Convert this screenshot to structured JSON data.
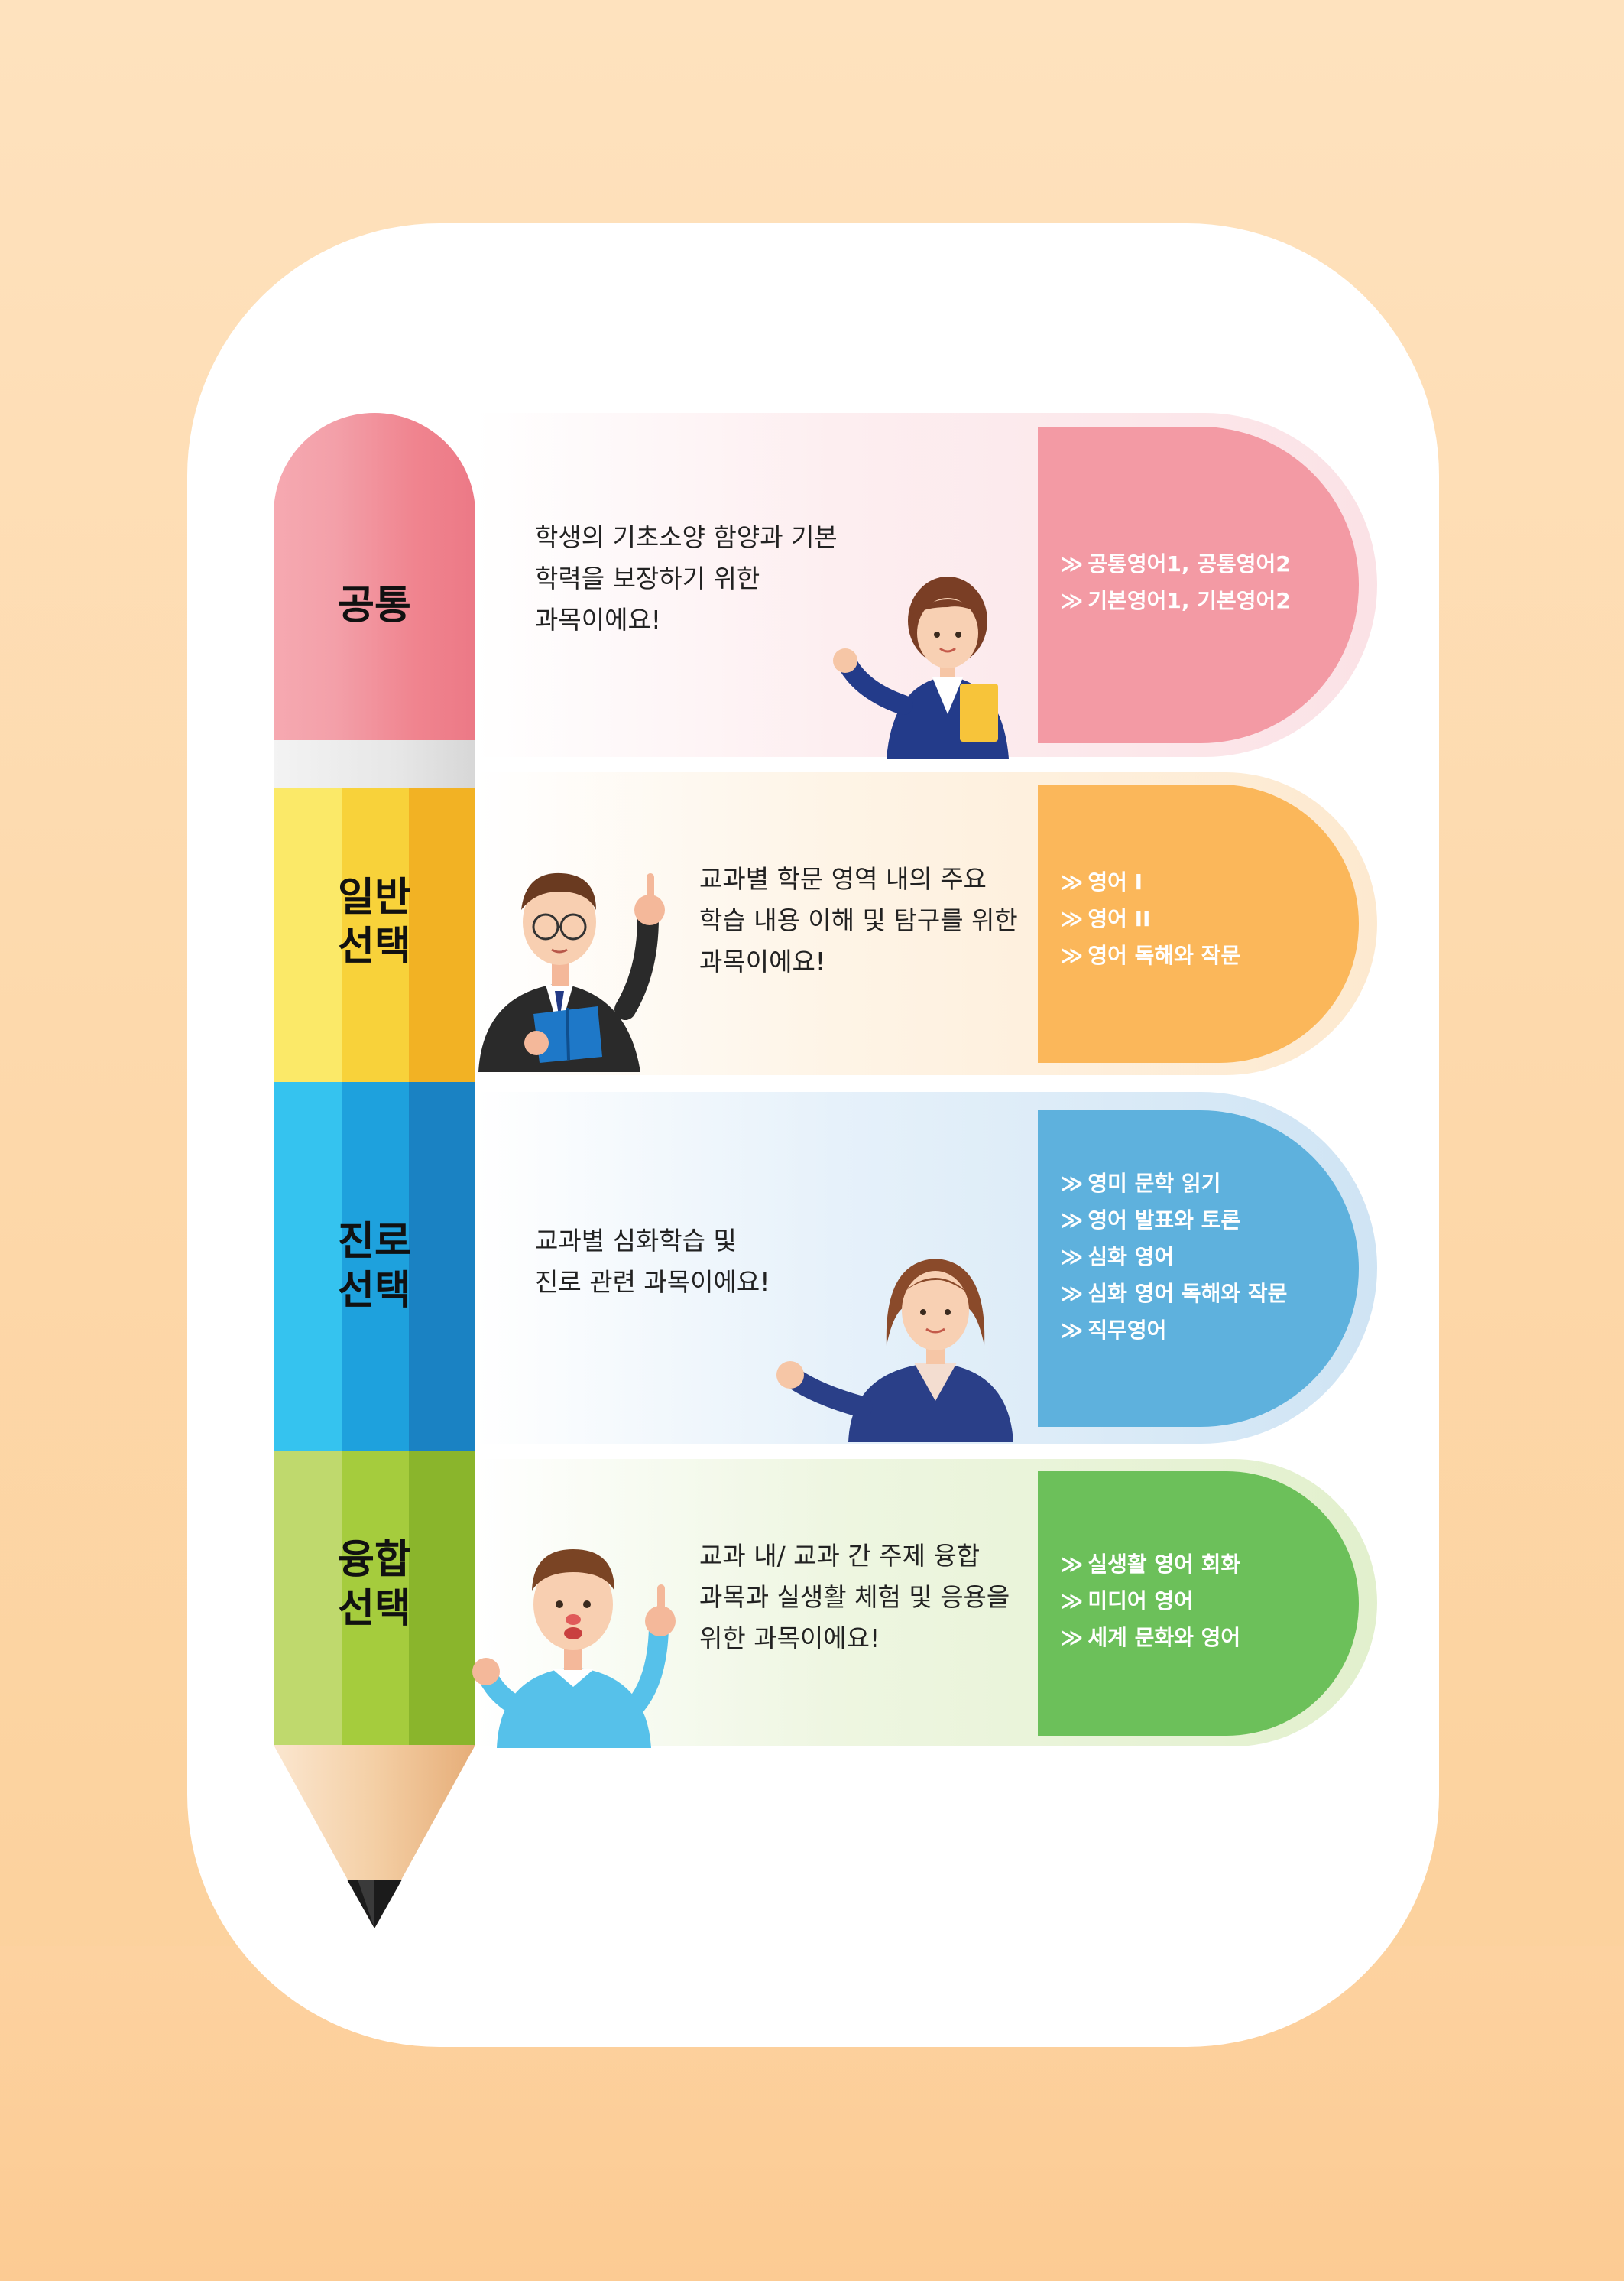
{
  "rows": [
    {
      "category": [
        "공통"
      ],
      "description": [
        "학생의 기초소양 함양과 기본",
        "학력을 보장하기 위한",
        "과목이에요!"
      ],
      "items": [
        "공통영어1, 공통영어2",
        "기본영어1, 기본영어2"
      ],
      "colors": {
        "tab": "#f3a0a8",
        "band": "#fde7ea"
      }
    },
    {
      "category": [
        "일반",
        "선택"
      ],
      "description": [
        "교과별 학문 영역 내의 주요",
        "학습 내용 이해 및 탐구를 위한",
        "과목이에요!"
      ],
      "items": [
        "영어 I",
        "영어 II",
        "영어 독해와 작문"
      ],
      "colors": {
        "tab": "#fbb95a",
        "band": "#fef0dc"
      }
    },
    {
      "category": [
        "진로",
        "선택"
      ],
      "description": [
        "교과별 심화학습 및",
        "진로 관련 과목이에요!"
      ],
      "items": [
        "영미 문학 읽기",
        "영어 발표와 토론",
        "심화 영어",
        "심화 영어 독해와 작문",
        "직무영어"
      ],
      "colors": {
        "tab": "#62b3de",
        "band": "#d8ebf7"
      }
    },
    {
      "category": [
        "융합",
        "선택"
      ],
      "description": [
        "교과 내/ 교과 간 주제 융합",
        "과목과 실생활 체험 및 응용을",
        "위한 과목이에요!"
      ],
      "items": [
        "실생활 영어 회화",
        "미디어 영어",
        "세계 문화와 영어"
      ],
      "colors": {
        "tab": "#6cc05a",
        "band": "#e7f2d4"
      }
    }
  ],
  "bullet": "≫",
  "icons": [
    "pencil-illustration",
    "teacher-woman-icon",
    "teacher-man-icon",
    "teacher-woman-icon",
    "student-boy-icon"
  ]
}
